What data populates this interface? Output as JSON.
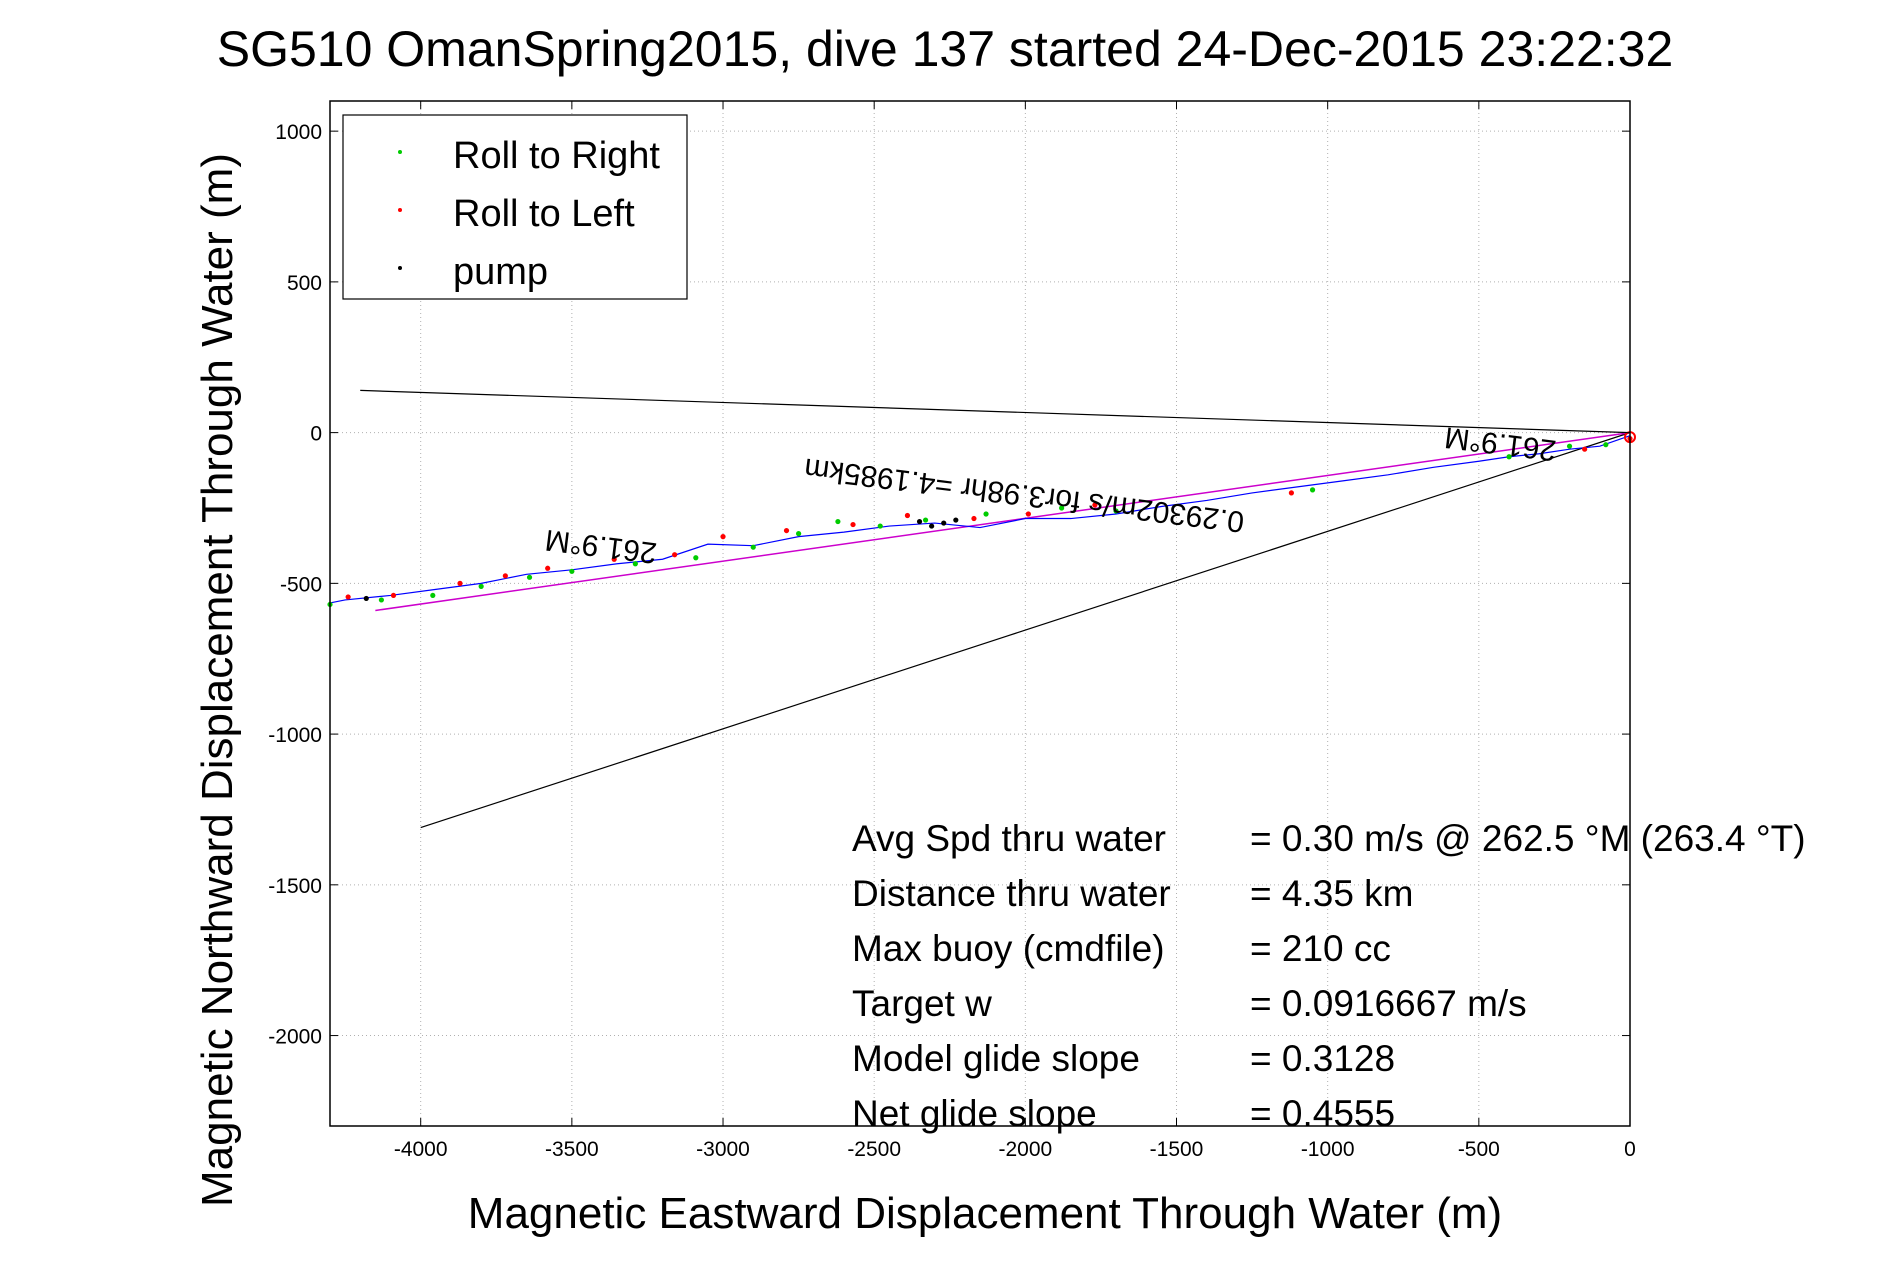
{
  "colors": {
    "track": "#0000ff",
    "roll_right": "#00cc00",
    "roll_left": "#ff0000",
    "pump": "#000000",
    "heading_line": "#cc00cc",
    "grid": "#b0b0b0",
    "axes": "#000000"
  },
  "chart_data": {
    "type": "line",
    "title": "SG510 OmanSpring2015, dive 137 started 24-Dec-2015 23:22:32",
    "xlabel": "Magnetic Eastward Displacement Through Water (m)",
    "ylabel": "Magnetic Northward Displacement Through Water (m)",
    "xlim": [
      -4300,
      0
    ],
    "ylim": [
      -2300,
      1100
    ],
    "xticks": [
      -4000,
      -3500,
      -3000,
      -2500,
      -2000,
      -1500,
      -1000,
      -500,
      0
    ],
    "yticks": [
      1000,
      500,
      0,
      -500,
      -1000,
      -1500,
      -2000
    ],
    "xtick_labels": [
      "-4000",
      "-3500",
      "-3000",
      "-2500",
      "-2000",
      "-1500",
      "-1000",
      "-500",
      "0"
    ],
    "ytick_labels": [
      "1000",
      "500",
      "0",
      "-500",
      "-1000",
      "-1500",
      "-2000"
    ],
    "grid": true,
    "legend": {
      "position": "top-left",
      "entries": [
        "Roll to Right",
        "Roll to Left",
        "pump"
      ]
    },
    "track": {
      "x": [
        0,
        -100,
        -200,
        -300,
        -400,
        -500,
        -650,
        -800,
        -950,
        -1100,
        -1250,
        -1400,
        -1550,
        -1700,
        -1850,
        -2000,
        -2150,
        -2300,
        -2450,
        -2600,
        -2750,
        -2900,
        -3050,
        -3200,
        -3350,
        -3500,
        -3650,
        -3800,
        -3950,
        -4100,
        -4250,
        -4300
      ],
      "y": [
        -10,
        -45,
        -55,
        -70,
        -80,
        -95,
        -115,
        -140,
        -160,
        -180,
        -200,
        -225,
        -245,
        -270,
        -285,
        -285,
        -315,
        -300,
        -310,
        -330,
        -345,
        -375,
        -370,
        -420,
        -435,
        -455,
        -470,
        -500,
        -520,
        -540,
        -555,
        -565
      ]
    },
    "roll_right": {
      "x": [
        -80,
        -200,
        -400,
        -1050,
        -1700,
        -1880,
        -2130,
        -2330,
        -2480,
        -2620,
        -2750,
        -2900,
        -3090,
        -3290,
        -3500,
        -3640,
        -3800,
        -3960,
        -4130,
        -4300
      ],
      "y": [
        -40,
        -45,
        -80,
        -190,
        -260,
        -250,
        -270,
        -290,
        -310,
        -295,
        -335,
        -380,
        -415,
        -435,
        -460,
        -480,
        -510,
        -540,
        -555,
        -570
      ]
    },
    "roll_left": {
      "x": [
        0,
        -150,
        -1120,
        -1770,
        -1990,
        -2170,
        -2390,
        -2570,
        -2790,
        -3000,
        -3160,
        -3360,
        -3580,
        -3720,
        -3870,
        -4090,
        -4240
      ],
      "y": [
        -20,
        -55,
        -200,
        -240,
        -270,
        -285,
        -275,
        -305,
        -325,
        -345,
        -405,
        -420,
        -450,
        -475,
        -500,
        -540,
        -545
      ]
    },
    "pump": {
      "x": [
        -2230,
        -2270,
        -2310,
        -2350,
        -4180
      ],
      "y": [
        -290,
        -300,
        -310,
        -295,
        -550
      ]
    },
    "heading_line": {
      "x": [
        0,
        -4150
      ],
      "y": [
        0,
        -590
      ]
    },
    "bracket_upper": {
      "x": [
        0,
        -4200
      ],
      "y": [
        0,
        140
      ]
    },
    "bracket_lower": {
      "x": [
        0,
        -4000
      ],
      "y": [
        0,
        -1310
      ]
    },
    "annotations": {
      "heading_far": "261.9°M",
      "heading_near": "261.9°M",
      "current": "0.29302m/s for3.98hr =4.1985km"
    },
    "stats": [
      {
        "label": "Avg Spd thru water",
        "value": "=  0.30 m/s @ 262.5 °M (263.4 °T)"
      },
      {
        "label": "Distance thru water",
        "value": "=  4.35 km"
      },
      {
        "label": "Max buoy (cmdfile)",
        "value": "= 210 cc"
      },
      {
        "label": "Target w",
        "value": "= 0.0916667 m/s"
      },
      {
        "label": "Model glide slope",
        "value": "= 0.3128"
      },
      {
        "label": "Net glide slope",
        "value": "= 0.4555"
      }
    ]
  }
}
